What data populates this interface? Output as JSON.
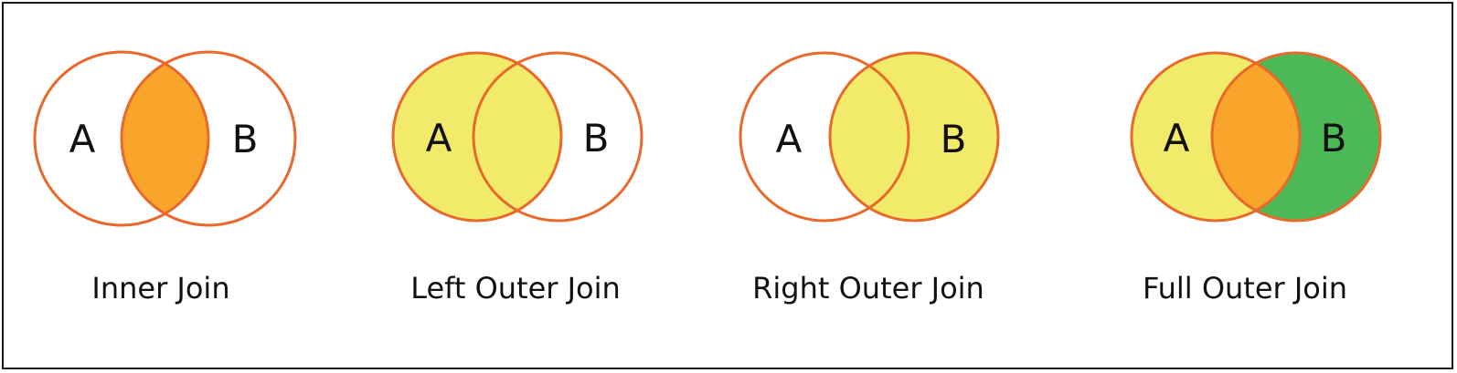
{
  "colors": {
    "outline": "#e8692a",
    "overlap_orange": "#f9a42a",
    "fill_yellow": "#f2ea6a",
    "fill_green": "#4db856",
    "empty": "#ffffff",
    "text": "#111111"
  },
  "diagrams": [
    {
      "label_a": "A",
      "label_b": "B",
      "caption": "Inner Join"
    },
    {
      "label_a": "A",
      "label_b": "B",
      "caption": "Left Outer Join"
    },
    {
      "label_a": "A",
      "label_b": "B",
      "caption": "Right Outer Join"
    },
    {
      "label_a": "A",
      "label_b": "B",
      "caption": "Full Outer Join"
    }
  ]
}
